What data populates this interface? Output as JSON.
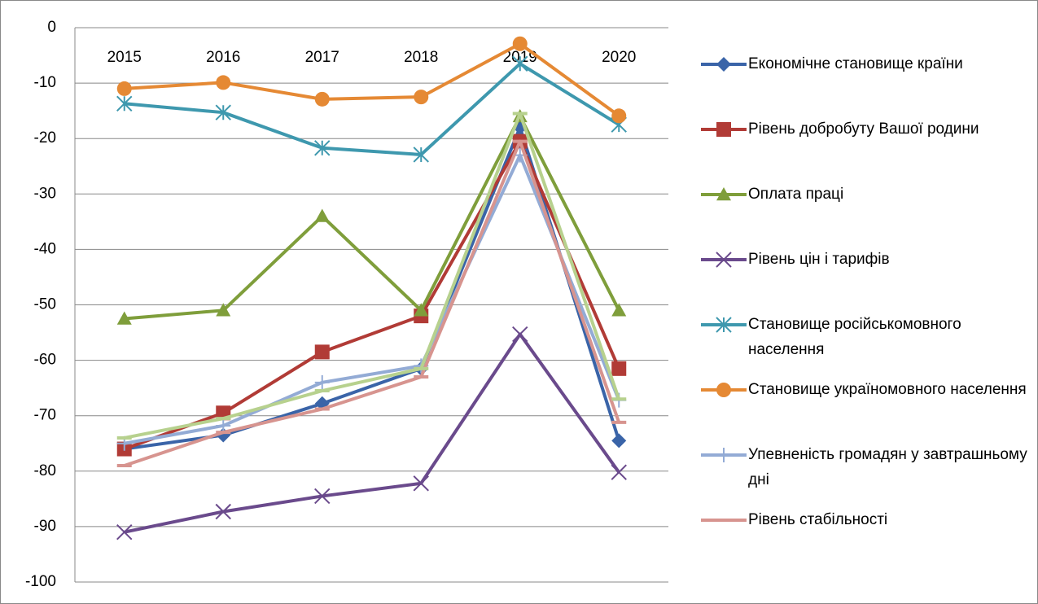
{
  "chart_data": {
    "type": "line",
    "categories": [
      "2015",
      "2016",
      "2017",
      "2018",
      "2019",
      "2020"
    ],
    "ylim": [
      -100,
      0
    ],
    "yticks": [
      0,
      -10,
      -20,
      -30,
      -40,
      -50,
      -60,
      -70,
      -80,
      -90,
      -100
    ],
    "grid": true,
    "legend": "right",
    "series": [
      {
        "name": "Економічне становище країни",
        "color": "#3a64a8",
        "marker": "diamond",
        "values": [
          -76,
          -73.5,
          -67.8,
          -61.5,
          -18,
          -74.5
        ]
      },
      {
        "name": "Рівень добробуту Вашої родини",
        "color": "#b13b36",
        "marker": "square",
        "values": [
          -76,
          -69.5,
          -58.5,
          -52,
          -20.5,
          -61.5
        ]
      },
      {
        "name": "Оплата праці",
        "color": "#7f9e3b",
        "marker": "triangle",
        "values": [
          -52.5,
          -51,
          -34,
          -51,
          -16,
          -51
        ]
      },
      {
        "name": "Рівень цін і тарифів",
        "color": "#6a4a8c",
        "marker": "x",
        "values": [
          -91,
          -87.3,
          -84.5,
          -82.2,
          -55.3,
          -80.2
        ]
      },
      {
        "name": "Становище російськомовного населення",
        "color": "#3e98ae",
        "marker": "star",
        "values": [
          -13.7,
          -15.3,
          -21.7,
          -22.9,
          -6.5,
          -17.5
        ]
      },
      {
        "name": "Становище україномовного населення",
        "color": "#e58934",
        "marker": "circle",
        "values": [
          -11,
          -9.9,
          -12.9,
          -12.5,
          -2.9,
          -15.9
        ]
      },
      {
        "name": "Упевненість громадян у завтрашньому дні",
        "color": "#93abd5",
        "marker": "plus",
        "values": [
          -75,
          -71.8,
          -64,
          -61,
          -23,
          -67.2
        ]
      },
      {
        "name": "Рівень стабільності",
        "color": "#d7948f",
        "marker": "dash",
        "values": [
          -79,
          -73,
          -68.8,
          -63,
          -20.5,
          -71.2
        ]
      },
      {
        "color": "#b7d18e",
        "marker": "dash",
        "values": [
          -74,
          -70.5,
          -65.5,
          -61.5,
          -15.5,
          -67
        ]
      }
    ]
  }
}
